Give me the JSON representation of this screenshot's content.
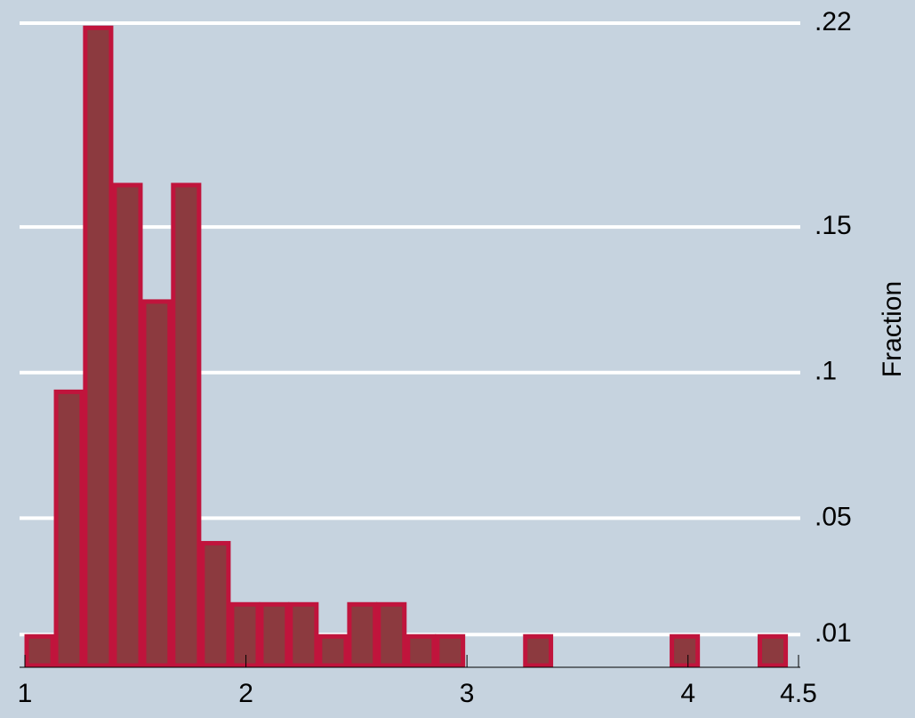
{
  "chart_data": {
    "type": "histogram",
    "y_label": "Fraction",
    "bins": [
      1,
      1.133,
      1.265,
      1.398,
      1.531,
      1.663,
      1.796,
      1.929,
      2.062,
      2.194,
      2.327,
      2.46,
      2.592,
      2.725,
      2.858,
      2.99,
      3.123,
      3.256,
      3.388,
      3.521,
      3.654,
      3.787,
      3.919,
      4.052,
      4.185,
      4.317,
      4.45
    ],
    "values": [
      0.01,
      0.094,
      0.219,
      0.165,
      0.125,
      0.165,
      0.042,
      0.021,
      0.021,
      0.021,
      0.01,
      0.021,
      0.021,
      0.01,
      0.01,
      0,
      0,
      0.01,
      0,
      0,
      0,
      0,
      0.01,
      0,
      0,
      0.01
    ],
    "color": "#8c3a3f",
    "edge_color": "#c0143c",
    "xlim": [
      1,
      4.5
    ],
    "xticks": [
      1,
      2,
      3,
      4,
      4.5
    ],
    "ylim": [
      0,
      0.22
    ],
    "yticks": [
      {
        "value": 0.01,
        "label": ".01"
      },
      {
        "value": 0.05,
        "label": ".05"
      },
      {
        "value": 0.1,
        "label": ".1"
      },
      {
        "value": 0.15,
        "label": ".15"
      },
      {
        "value": 0.22,
        "label": ".22"
      }
    ],
    "grid": true,
    "y_axis_side": "right"
  }
}
